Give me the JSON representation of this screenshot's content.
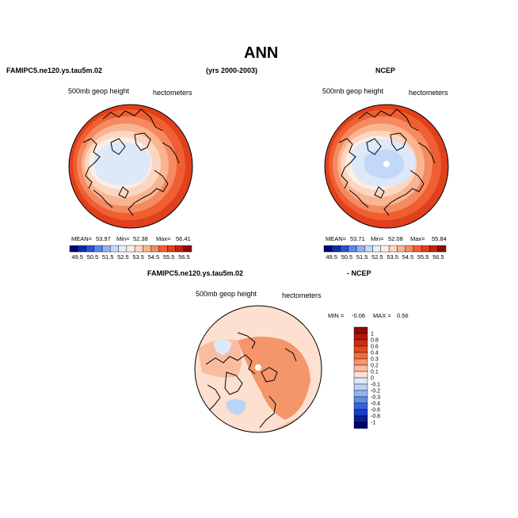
{
  "chart_data": [
    {
      "type": "heatmap",
      "panel": "FAMIPC5.ne120.ys.tau5m.02",
      "variable": "500mb geop height",
      "units": "hectometers",
      "projection": "north polar stereographic",
      "stats": {
        "mean_label": "MEAN=",
        "mean": "53.97",
        "min_label": "Min=",
        "min": "52.38",
        "max_label": "Max=",
        "max": "56.41"
      },
      "colorbar": {
        "levels": [
          "49.5",
          "50.5",
          "51.5",
          "52.5",
          "53.5",
          "54.5",
          "55.5",
          "56.5"
        ],
        "colors": [
          "#00007f",
          "#0a2ea8",
          "#2a52d8",
          "#5a88ec",
          "#8fb2f2",
          "#c3d8f8",
          "#e6eef9",
          "#fdeee4",
          "#fcd6c0",
          "#f9b592",
          "#f58a60",
          "#ef5f32",
          "#e0401c",
          "#c22410",
          "#8f0a05"
        ]
      }
    },
    {
      "type": "heatmap",
      "panel": "NCEP",
      "variable": "500mb geop height",
      "units": "hectometers",
      "projection": "north polar stereographic",
      "stats": {
        "mean_label": "MEAN=",
        "mean": "53.71",
        "min_label": "Min=",
        "min": "52.08",
        "max_label": "Max=",
        "max": "55.84"
      },
      "colorbar": {
        "levels": [
          "49.5",
          "50.5",
          "51.5",
          "52.5",
          "53.5",
          "54.5",
          "55.5",
          "56.5"
        ],
        "colors": [
          "#00007f",
          "#0a2ea8",
          "#2a52d8",
          "#5a88ec",
          "#8fb2f2",
          "#c3d8f8",
          "#e6eef9",
          "#fdeee4",
          "#fcd6c0",
          "#f9b592",
          "#f58a60",
          "#ef5f32",
          "#e0401c",
          "#c22410",
          "#8f0a05"
        ]
      }
    },
    {
      "type": "heatmap",
      "panel": "FAMIPC5.ne120.ys.tau5m.02 - NCEP",
      "variable": "500mb geop height",
      "units": "hectometers",
      "projection": "north polar stereographic",
      "stats": {
        "min_label": "MIN =",
        "min": "-0.06",
        "max_label": "MAX =",
        "max": "0.56"
      },
      "colorbar": {
        "levels": [
          "1",
          "0.8",
          "0.6",
          "0.4",
          "0.3",
          "0.2",
          "0.1",
          "0",
          "-0.1",
          "-0.2",
          "-0.3",
          "-0.4",
          "-0.6",
          "-0.8",
          "-1"
        ],
        "colors": [
          "#8f0a05",
          "#b01a0a",
          "#cc2e12",
          "#e2481e",
          "#ef6e3c",
          "#f5956a",
          "#fabca0",
          "#fde0d0",
          "#dde9fb",
          "#bcd3f5",
          "#93b5ef",
          "#5e8ee9",
          "#3465df",
          "#1a3ec4",
          "#0a1e96",
          "#00006e"
        ]
      }
    }
  ],
  "figure": {
    "title": "ANN",
    "case_name": "FAMIPC5.ne120.ys.tau5m.02",
    "years": "(yrs 2000-2003)",
    "obs_name": "NCEP",
    "diff_case": "FAMIPC5.ne120.ys.tau5m.02",
    "diff_obs": "- NCEP"
  }
}
